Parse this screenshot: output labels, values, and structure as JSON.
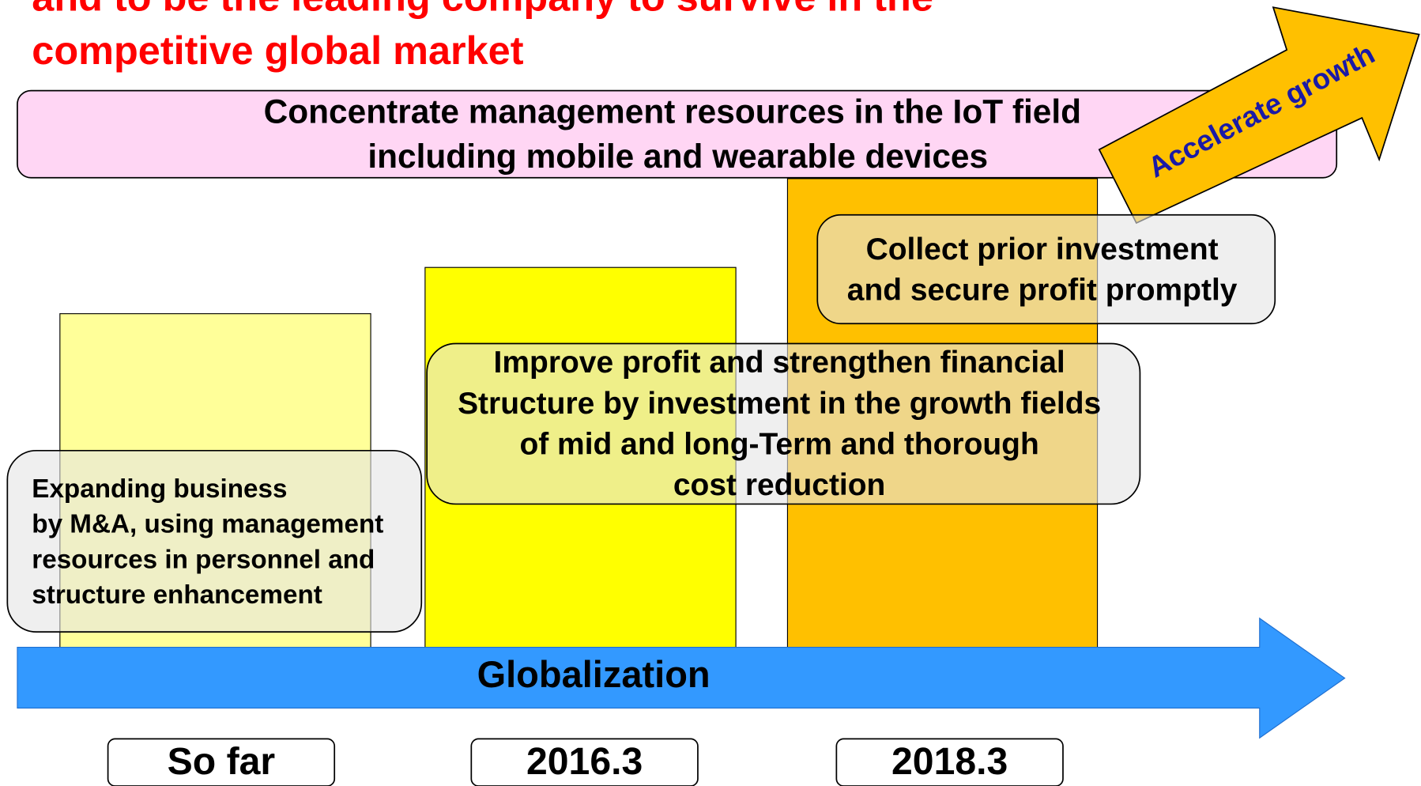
{
  "header": {
    "title_lines": [
      "and to be the leading company to survive in the",
      "competitive global market"
    ]
  },
  "banner": {
    "lines": [
      "Concentrate management resources in the IoT field",
      "including mobile and wearable devices"
    ]
  },
  "growth_arrow": {
    "label": "Accelerate growth"
  },
  "boxes": [
    {
      "lines": [
        "Expanding business",
        "by M&A, using management",
        "resources in personnel and",
        "structure enhancement"
      ]
    },
    {
      "lines": [
        "Improve profit and strengthen financial",
        "Structure by investment in the growth fields",
        "of mid and long-Term and thorough",
        "cost reduction"
      ]
    },
    {
      "lines": [
        "Collect prior investment",
        "and secure profit promptly"
      ]
    }
  ],
  "timeline": {
    "label": "Globalization"
  },
  "periods": [
    "So far",
    "2016.3",
    "2018.3"
  ]
}
